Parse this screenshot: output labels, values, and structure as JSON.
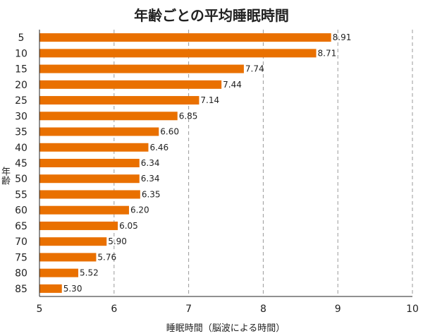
{
  "chart_data": {
    "type": "bar",
    "orientation": "horizontal",
    "title": "年齢ごとの平均睡眠時間",
    "xlabel": "睡眠時間（脳波による時間）",
    "ylabel": "年齢",
    "categories": [
      "5",
      "10",
      "15",
      "20",
      "25",
      "30",
      "35",
      "40",
      "45",
      "50",
      "55",
      "60",
      "65",
      "70",
      "75",
      "80",
      "85"
    ],
    "values": [
      8.91,
      8.71,
      7.74,
      7.44,
      7.14,
      6.85,
      6.6,
      6.46,
      6.34,
      6.34,
      6.35,
      6.2,
      6.05,
      5.9,
      5.76,
      5.52,
      5.3
    ],
    "value_labels": [
      "8.91",
      "8.71",
      "7.74",
      "7.44",
      "7.14",
      "6.85",
      "6.60",
      "6.46",
      "6.34",
      "6.34",
      "6.35",
      "6.20",
      "6.05",
      "5.90",
      "5.76",
      "5.52",
      "5.30"
    ],
    "xlim": [
      5,
      10
    ],
    "xticks": [
      "5",
      "6",
      "7",
      "8",
      "9",
      "10"
    ],
    "grid": "vertical dashed",
    "bar_color": "#E97000",
    "grid_color": "#999999"
  }
}
